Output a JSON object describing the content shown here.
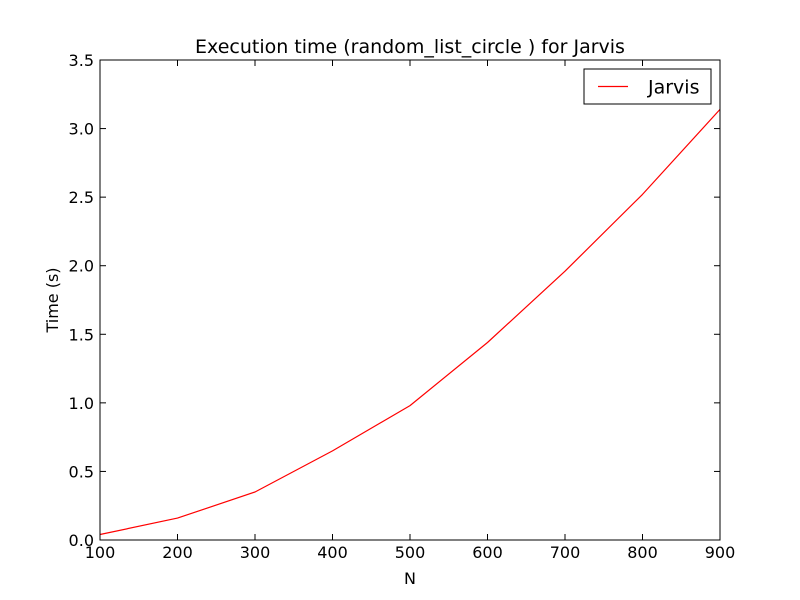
{
  "chart_data": {
    "type": "line",
    "title": "Execution time (random_list_circle ) for Jarvis",
    "xlabel": "N",
    "ylabel": "Time (s)",
    "xlim": [
      100,
      900
    ],
    "ylim": [
      0,
      3.5
    ],
    "xticks": [
      100,
      200,
      300,
      400,
      500,
      600,
      700,
      800,
      900
    ],
    "xtick_labels": [
      "100",
      "200",
      "300",
      "400",
      "500",
      "600",
      "700",
      "800",
      "900"
    ],
    "yticks": [
      0,
      0.5,
      1.0,
      1.5,
      2.0,
      2.5,
      3.0,
      3.5
    ],
    "ytick_labels": [
      "0.0",
      "0.5",
      "1.0",
      "1.5",
      "2.0",
      "2.5",
      "3.0",
      "3.5"
    ],
    "grid": false,
    "legend_position": "top-right",
    "x": [
      100,
      200,
      300,
      400,
      500,
      600,
      700,
      800,
      900
    ],
    "series": [
      {
        "name": "Jarvis",
        "color": "#ff0000",
        "values": [
          0.04,
          0.16,
          0.35,
          0.65,
          0.98,
          1.44,
          1.96,
          2.52,
          3.14
        ]
      }
    ]
  }
}
